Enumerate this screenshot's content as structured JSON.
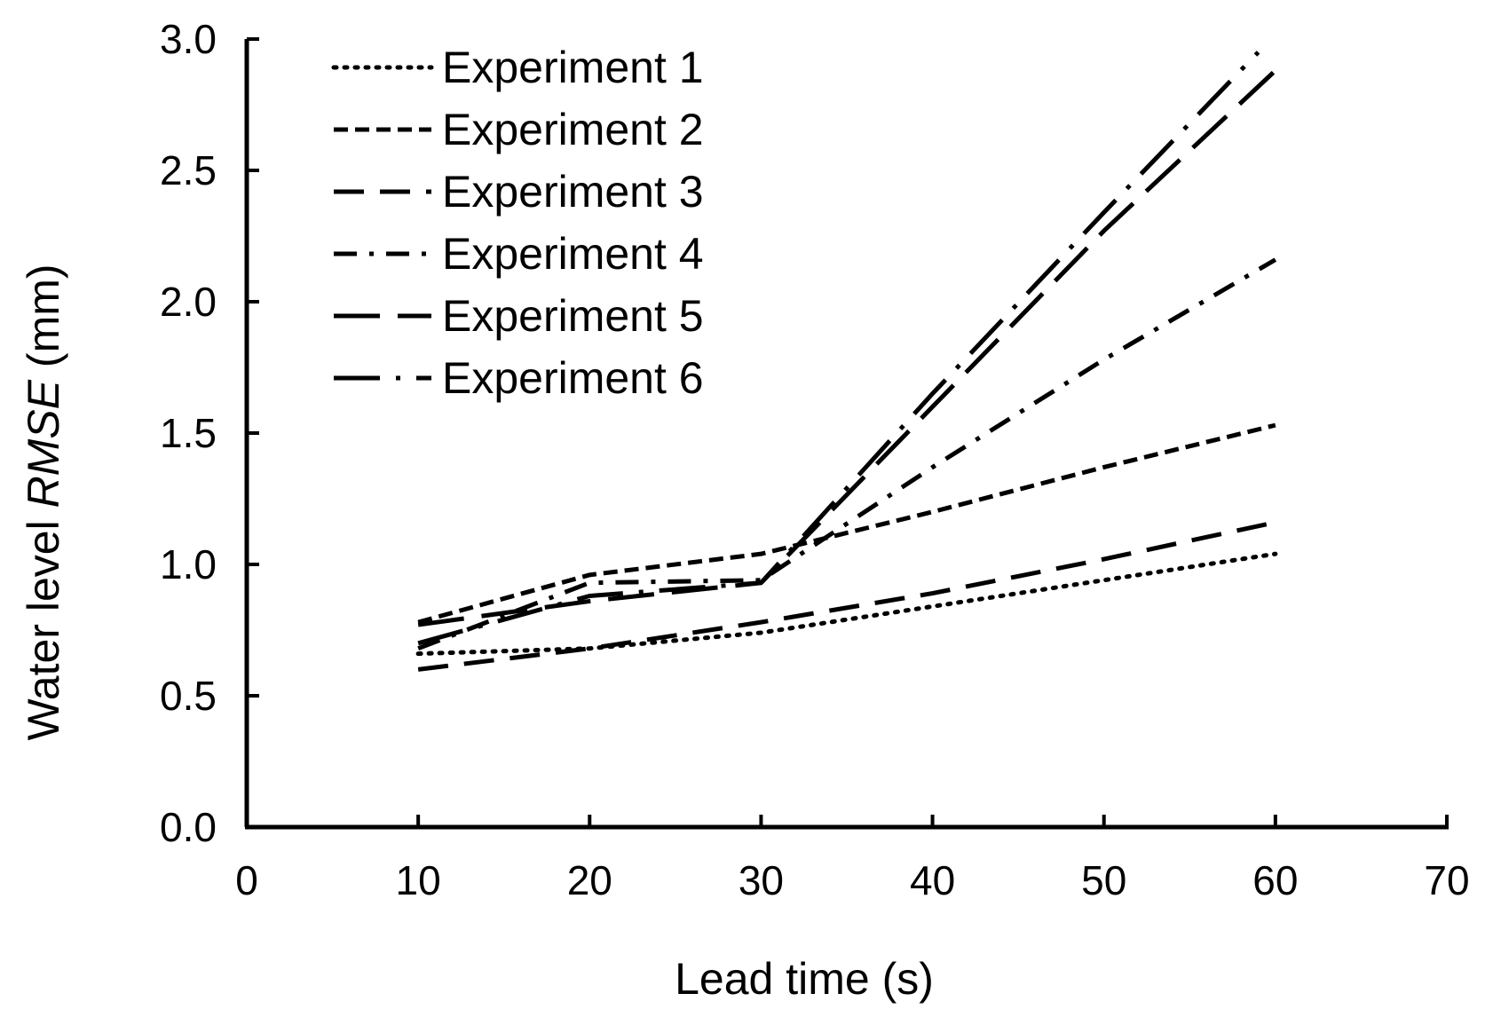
{
  "chart_data": {
    "type": "line",
    "title": "",
    "xlabel": "Lead time (s)",
    "ylabel_prefix": "Water level ",
    "ylabel_italic": "RMSE",
    "ylabel_suffix": " (mm)",
    "xlim": [
      0,
      70
    ],
    "ylim": [
      0,
      3.0
    ],
    "x_ticks": [
      0,
      10,
      20,
      30,
      40,
      50,
      60,
      70
    ],
    "x_tick_labels": [
      "0",
      "10",
      "20",
      "30",
      "40",
      "50",
      "60",
      "70"
    ],
    "y_ticks": [
      0,
      0.5,
      1.0,
      1.5,
      2.0,
      2.5,
      3.0
    ],
    "y_tick_labels": [
      "0.0",
      "0.5",
      "1.0",
      "1.5",
      "2.0",
      "2.5",
      "3.0"
    ],
    "grid": false,
    "legend_position": "top-left",
    "series": [
      {
        "name": "Experiment 1",
        "style": "dotted",
        "x": [
          10,
          20,
          30,
          40,
          50,
          60
        ],
        "y": [
          0.66,
          0.68,
          0.74,
          0.84,
          0.94,
          1.04
        ]
      },
      {
        "name": "Experiment 2",
        "style": "short-dash",
        "x": [
          10,
          20,
          30,
          40,
          50,
          60
        ],
        "y": [
          0.78,
          0.96,
          1.04,
          1.2,
          1.37,
          1.53
        ]
      },
      {
        "name": "Experiment 3",
        "style": "dash",
        "x": [
          10,
          20,
          30,
          40,
          50,
          60
        ],
        "y": [
          0.6,
          0.68,
          0.78,
          0.89,
          1.02,
          1.16
        ]
      },
      {
        "name": "Experiment 4",
        "style": "dash-dot",
        "x": [
          10,
          20,
          30,
          40,
          50,
          60
        ],
        "y": [
          0.68,
          0.93,
          0.94,
          1.37,
          1.78,
          2.16
        ]
      },
      {
        "name": "Experiment 5",
        "style": "long-dash",
        "x": [
          10,
          20,
          30,
          40,
          50,
          60
        ],
        "y": [
          0.77,
          0.86,
          0.93,
          1.6,
          2.27,
          2.88
        ]
      },
      {
        "name": "Experiment 6",
        "style": "long-dash-dot",
        "x": [
          10,
          20,
          30,
          40,
          50,
          59
        ],
        "y": [
          0.7,
          0.88,
          0.93,
          1.65,
          2.34,
          2.95
        ]
      }
    ]
  }
}
